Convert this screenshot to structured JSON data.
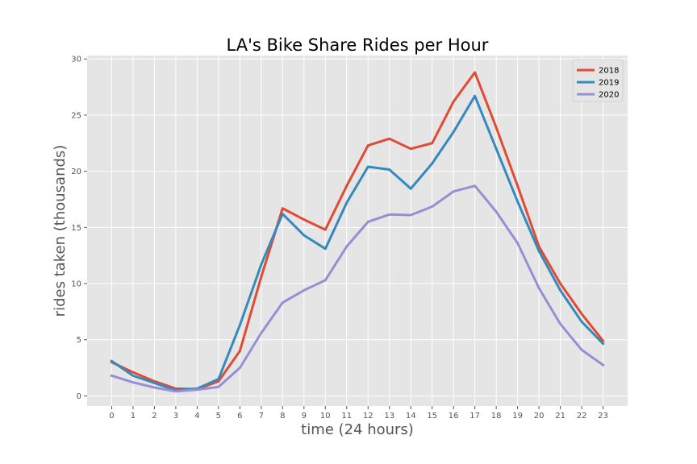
{
  "chart_data": {
    "type": "line",
    "title": "LA's Bike Share Rides per Hour",
    "xlabel": "time (24 hours)",
    "ylabel": "rides taken (thousands)",
    "x": [
      0,
      1,
      2,
      3,
      4,
      5,
      6,
      7,
      8,
      9,
      10,
      11,
      12,
      13,
      14,
      15,
      16,
      17,
      18,
      19,
      20,
      21,
      22,
      23
    ],
    "xlim": [
      -1.15,
      24.15
    ],
    "ylim": [
      -0.9,
      30.3
    ],
    "yticks": [
      0,
      5,
      10,
      15,
      20,
      25,
      30
    ],
    "grid": true,
    "legend_position": "top-right",
    "series": [
      {
        "name": "2018",
        "color": "#E24A33",
        "values": [
          3.0,
          2.1,
          1.3,
          0.65,
          0.6,
          1.3,
          4.0,
          10.6,
          16.7,
          15.7,
          14.8,
          18.7,
          22.3,
          22.9,
          22.0,
          22.5,
          26.2,
          28.8,
          23.9,
          18.7,
          13.3,
          10.0,
          7.3,
          4.9
        ]
      },
      {
        "name": "2019",
        "color": "#348ABD",
        "values": [
          3.1,
          1.8,
          1.15,
          0.5,
          0.65,
          1.5,
          6.3,
          11.7,
          16.2,
          14.3,
          13.1,
          17.2,
          20.4,
          20.15,
          18.45,
          20.7,
          23.5,
          26.7,
          22.0,
          17.3,
          12.9,
          9.4,
          6.6,
          4.65
        ]
      },
      {
        "name": "2020",
        "color": "#988ED5",
        "values": [
          1.8,
          1.2,
          0.75,
          0.4,
          0.55,
          0.8,
          2.5,
          5.6,
          8.3,
          9.4,
          10.3,
          13.3,
          15.5,
          16.15,
          16.1,
          16.85,
          18.2,
          18.7,
          16.4,
          13.6,
          9.6,
          6.4,
          4.1,
          2.75
        ]
      }
    ]
  }
}
